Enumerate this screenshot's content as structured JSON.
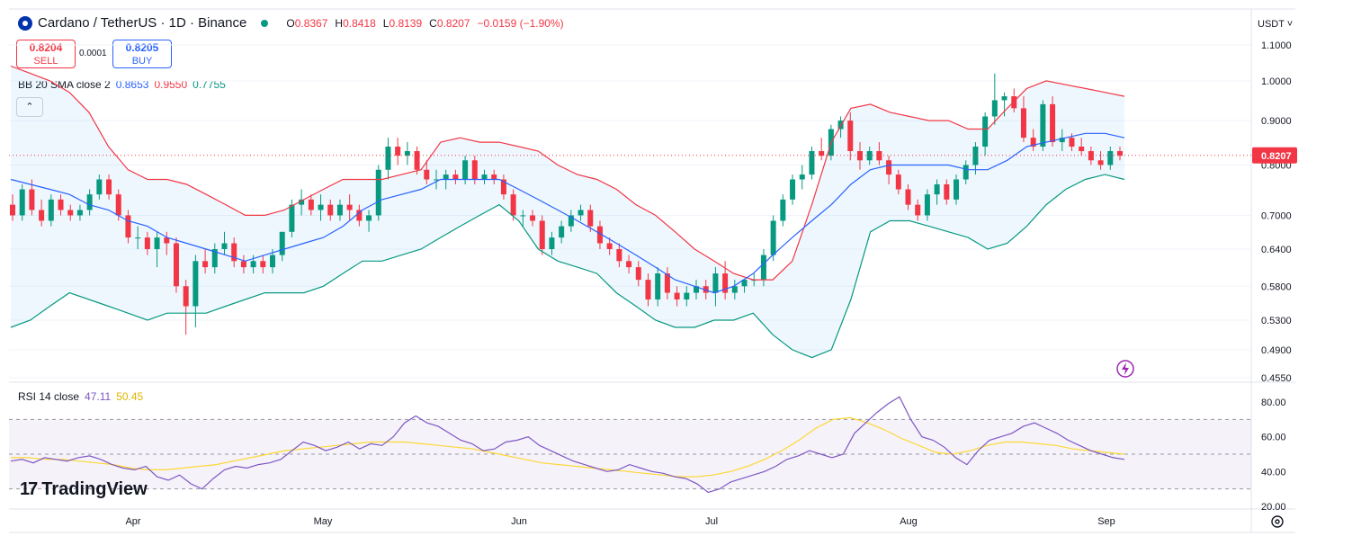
{
  "header": {
    "symbol_title": "Cardano / TetherUS · 1D · Binance",
    "ohlc": {
      "o_label": "O",
      "o": "0.8367",
      "h_label": "H",
      "h": "0.8418",
      "l_label": "L",
      "l": "0.8139",
      "c_label": "C",
      "c": "0.8207",
      "change": "−0.0159 (−1.90%)"
    }
  },
  "trade": {
    "sell_price": "0.8204",
    "sell_label": "SELL",
    "spread": "0.0001",
    "buy_price": "0.8205",
    "buy_label": "BUY"
  },
  "bb_legend": {
    "name": "BB 20 SMA close 2",
    "basis": "0.8653",
    "upper": "0.9550",
    "lower": "0.7755"
  },
  "rsi_legend": {
    "name": "RSI 14 close",
    "rsi": "47.11",
    "ma": "50.45"
  },
  "currency": "USDT ˅",
  "watermark": "TradingView",
  "colors": {
    "up": "#089981",
    "down": "#f23645",
    "basis": "#2962ff",
    "upper": "#f23645",
    "lower": "#089981",
    "bbfill": "#e3f2fd",
    "rsi": "#7e57c2",
    "rsi_ma": "#fdd835",
    "last_price": "#f23645"
  },
  "chart_data": [
    {
      "type": "candlestick",
      "title": "Cardano / TetherUS · 1D · Binance",
      "price_axis_ticks": [
        "1.1000",
        "1.0000",
        "0.9000",
        "0.8000",
        "0.7000",
        "0.6400",
        "0.5800",
        "0.5300",
        "0.4900",
        "0.4550"
      ],
      "x_tick_labels": [
        "Apr",
        "May",
        "Jun",
        "Jul",
        "Aug",
        "Sep"
      ],
      "last_price": "0.8207",
      "scale": "log",
      "ylim": [
        0.455,
        1.1
      ],
      "candles": [
        [
          0.72,
          0.74,
          0.69,
          0.7
        ],
        [
          0.7,
          0.76,
          0.69,
          0.75
        ],
        [
          0.75,
          0.77,
          0.7,
          0.71
        ],
        [
          0.71,
          0.73,
          0.68,
          0.69
        ],
        [
          0.69,
          0.74,
          0.68,
          0.73
        ],
        [
          0.73,
          0.74,
          0.7,
          0.71
        ],
        [
          0.71,
          0.72,
          0.69,
          0.7
        ],
        [
          0.7,
          0.72,
          0.69,
          0.71
        ],
        [
          0.71,
          0.75,
          0.7,
          0.74
        ],
        [
          0.74,
          0.78,
          0.73,
          0.77
        ],
        [
          0.77,
          0.78,
          0.73,
          0.74
        ],
        [
          0.74,
          0.75,
          0.69,
          0.7
        ],
        [
          0.7,
          0.71,
          0.65,
          0.66
        ],
        [
          0.66,
          0.68,
          0.64,
          0.66
        ],
        [
          0.66,
          0.67,
          0.63,
          0.64
        ],
        [
          0.64,
          0.67,
          0.61,
          0.66
        ],
        [
          0.66,
          0.67,
          0.63,
          0.65
        ],
        [
          0.65,
          0.66,
          0.57,
          0.58
        ],
        [
          0.58,
          0.59,
          0.51,
          0.55
        ],
        [
          0.55,
          0.63,
          0.52,
          0.62
        ],
        [
          0.62,
          0.64,
          0.6,
          0.61
        ],
        [
          0.61,
          0.65,
          0.6,
          0.64
        ],
        [
          0.64,
          0.67,
          0.63,
          0.65
        ],
        [
          0.65,
          0.66,
          0.61,
          0.62
        ],
        [
          0.62,
          0.63,
          0.6,
          0.61
        ],
        [
          0.61,
          0.63,
          0.6,
          0.62
        ],
        [
          0.62,
          0.63,
          0.6,
          0.61
        ],
        [
          0.61,
          0.64,
          0.6,
          0.63
        ],
        [
          0.63,
          0.67,
          0.62,
          0.67
        ],
        [
          0.67,
          0.73,
          0.66,
          0.72
        ],
        [
          0.72,
          0.75,
          0.7,
          0.73
        ],
        [
          0.73,
          0.74,
          0.7,
          0.71
        ],
        [
          0.71,
          0.74,
          0.69,
          0.72
        ],
        [
          0.72,
          0.73,
          0.69,
          0.7
        ],
        [
          0.7,
          0.73,
          0.69,
          0.72
        ],
        [
          0.72,
          0.74,
          0.69,
          0.71
        ],
        [
          0.71,
          0.72,
          0.68,
          0.69
        ],
        [
          0.69,
          0.71,
          0.67,
          0.7
        ],
        [
          0.7,
          0.8,
          0.69,
          0.79
        ],
        [
          0.79,
          0.86,
          0.77,
          0.84
        ],
        [
          0.84,
          0.86,
          0.8,
          0.82
        ],
        [
          0.82,
          0.85,
          0.8,
          0.83
        ],
        [
          0.83,
          0.84,
          0.78,
          0.79
        ],
        [
          0.79,
          0.81,
          0.76,
          0.77
        ],
        [
          0.77,
          0.79,
          0.75,
          0.77
        ],
        [
          0.77,
          0.79,
          0.75,
          0.78
        ],
        [
          0.78,
          0.79,
          0.76,
          0.77
        ],
        [
          0.77,
          0.82,
          0.76,
          0.81
        ],
        [
          0.81,
          0.82,
          0.76,
          0.77
        ],
        [
          0.77,
          0.79,
          0.76,
          0.78
        ],
        [
          0.78,
          0.79,
          0.76,
          0.77
        ],
        [
          0.77,
          0.78,
          0.73,
          0.74
        ],
        [
          0.74,
          0.75,
          0.69,
          0.7
        ],
        [
          0.7,
          0.71,
          0.68,
          0.7
        ],
        [
          0.7,
          0.71,
          0.68,
          0.69
        ],
        [
          0.69,
          0.7,
          0.63,
          0.64
        ],
        [
          0.64,
          0.67,
          0.63,
          0.66
        ],
        [
          0.66,
          0.69,
          0.65,
          0.68
        ],
        [
          0.68,
          0.71,
          0.67,
          0.7
        ],
        [
          0.7,
          0.72,
          0.69,
          0.71
        ],
        [
          0.71,
          0.72,
          0.67,
          0.68
        ],
        [
          0.68,
          0.69,
          0.64,
          0.65
        ],
        [
          0.65,
          0.66,
          0.63,
          0.64
        ],
        [
          0.64,
          0.65,
          0.61,
          0.62
        ],
        [
          0.62,
          0.63,
          0.6,
          0.61
        ],
        [
          0.61,
          0.62,
          0.58,
          0.59
        ],
        [
          0.59,
          0.6,
          0.55,
          0.56
        ],
        [
          0.56,
          0.61,
          0.55,
          0.6
        ],
        [
          0.6,
          0.61,
          0.56,
          0.57
        ],
        [
          0.57,
          0.58,
          0.55,
          0.56
        ],
        [
          0.56,
          0.58,
          0.55,
          0.57
        ],
        [
          0.57,
          0.59,
          0.56,
          0.58
        ],
        [
          0.58,
          0.59,
          0.56,
          0.57
        ],
        [
          0.57,
          0.61,
          0.55,
          0.6
        ],
        [
          0.6,
          0.62,
          0.56,
          0.57
        ],
        [
          0.57,
          0.59,
          0.56,
          0.58
        ],
        [
          0.58,
          0.59,
          0.57,
          0.59
        ],
        [
          0.59,
          0.6,
          0.58,
          0.59
        ],
        [
          0.59,
          0.64,
          0.58,
          0.63
        ],
        [
          0.63,
          0.7,
          0.62,
          0.69
        ],
        [
          0.69,
          0.74,
          0.68,
          0.73
        ],
        [
          0.73,
          0.78,
          0.72,
          0.77
        ],
        [
          0.77,
          0.8,
          0.75,
          0.78
        ],
        [
          0.78,
          0.84,
          0.77,
          0.83
        ],
        [
          0.83,
          0.86,
          0.81,
          0.82
        ],
        [
          0.82,
          0.89,
          0.81,
          0.88
        ],
        [
          0.88,
          0.91,
          0.86,
          0.9
        ],
        [
          0.9,
          0.92,
          0.81,
          0.83
        ],
        [
          0.83,
          0.85,
          0.79,
          0.81
        ],
        [
          0.81,
          0.84,
          0.8,
          0.83
        ],
        [
          0.83,
          0.85,
          0.8,
          0.81
        ],
        [
          0.81,
          0.82,
          0.76,
          0.78
        ],
        [
          0.78,
          0.79,
          0.74,
          0.75
        ],
        [
          0.75,
          0.76,
          0.71,
          0.72
        ],
        [
          0.72,
          0.73,
          0.69,
          0.7
        ],
        [
          0.7,
          0.75,
          0.69,
          0.74
        ],
        [
          0.74,
          0.77,
          0.72,
          0.76
        ],
        [
          0.76,
          0.77,
          0.72,
          0.73
        ],
        [
          0.73,
          0.78,
          0.72,
          0.77
        ],
        [
          0.77,
          0.81,
          0.76,
          0.8
        ],
        [
          0.8,
          0.85,
          0.78,
          0.84
        ],
        [
          0.84,
          0.92,
          0.82,
          0.91
        ],
        [
          0.91,
          1.02,
          0.89,
          0.95
        ],
        [
          0.95,
          0.97,
          0.91,
          0.96
        ],
        [
          0.96,
          0.98,
          0.92,
          0.93
        ],
        [
          0.93,
          0.96,
          0.85,
          0.86
        ],
        [
          0.86,
          0.88,
          0.83,
          0.84
        ],
        [
          0.84,
          0.95,
          0.83,
          0.94
        ],
        [
          0.94,
          0.96,
          0.84,
          0.85
        ],
        [
          0.85,
          0.88,
          0.83,
          0.86
        ],
        [
          0.86,
          0.87,
          0.83,
          0.84
        ],
        [
          0.84,
          0.86,
          0.82,
          0.83
        ],
        [
          0.83,
          0.84,
          0.8,
          0.81
        ],
        [
          0.81,
          0.83,
          0.79,
          0.8
        ],
        [
          0.8,
          0.84,
          0.79,
          0.83
        ],
        [
          0.83,
          0.84,
          0.81,
          0.82
        ]
      ],
      "bollinger": {
        "upper": [
          1.04,
          1.02,
          1.0,
          0.97,
          0.92,
          0.84,
          0.79,
          0.77,
          0.77,
          0.76,
          0.74,
          0.72,
          0.7,
          0.7,
          0.71,
          0.73,
          0.75,
          0.77,
          0.77,
          0.77,
          0.78,
          0.79,
          0.85,
          0.86,
          0.85,
          0.85,
          0.84,
          0.83,
          0.8,
          0.78,
          0.77,
          0.75,
          0.72,
          0.7,
          0.67,
          0.64,
          0.62,
          0.6,
          0.59,
          0.59,
          0.62,
          0.72,
          0.85,
          0.93,
          0.94,
          0.92,
          0.91,
          0.9,
          0.9,
          0.88,
          0.88,
          0.93,
          0.98,
          1.0,
          0.99,
          0.98,
          0.97,
          0.96
        ],
        "basis": [
          0.77,
          0.76,
          0.75,
          0.74,
          0.72,
          0.71,
          0.69,
          0.68,
          0.66,
          0.65,
          0.64,
          0.63,
          0.62,
          0.63,
          0.64,
          0.65,
          0.66,
          0.68,
          0.71,
          0.73,
          0.74,
          0.75,
          0.77,
          0.77,
          0.77,
          0.77,
          0.75,
          0.73,
          0.71,
          0.69,
          0.67,
          0.65,
          0.63,
          0.61,
          0.59,
          0.58,
          0.57,
          0.58,
          0.6,
          0.63,
          0.66,
          0.69,
          0.72,
          0.76,
          0.79,
          0.8,
          0.8,
          0.8,
          0.8,
          0.79,
          0.79,
          0.81,
          0.84,
          0.85,
          0.86,
          0.87,
          0.87,
          0.86
        ],
        "lower": [
          0.52,
          0.53,
          0.55,
          0.57,
          0.56,
          0.55,
          0.54,
          0.53,
          0.54,
          0.54,
          0.54,
          0.55,
          0.56,
          0.57,
          0.57,
          0.57,
          0.58,
          0.6,
          0.62,
          0.62,
          0.63,
          0.64,
          0.66,
          0.68,
          0.7,
          0.72,
          0.69,
          0.64,
          0.62,
          0.61,
          0.6,
          0.57,
          0.55,
          0.53,
          0.52,
          0.52,
          0.53,
          0.53,
          0.54,
          0.51,
          0.49,
          0.48,
          0.49,
          0.56,
          0.67,
          0.69,
          0.69,
          0.68,
          0.67,
          0.66,
          0.64,
          0.65,
          0.68,
          0.72,
          0.75,
          0.77,
          0.78,
          0.77
        ]
      }
    },
    {
      "type": "line",
      "title": "RSI 14 close",
      "ylim": [
        20,
        80
      ],
      "y_tick_labels": [
        "80.00",
        "60.00",
        "40.00",
        "20.00"
      ],
      "bands": [
        70,
        50,
        30
      ],
      "series": [
        {
          "name": "RSI",
          "values": [
            46,
            47,
            45,
            48,
            47,
            46,
            48,
            49,
            47,
            44,
            42,
            41,
            43,
            37,
            35,
            38,
            33,
            30,
            36,
            41,
            43,
            42,
            44,
            45,
            47,
            52,
            57,
            55,
            52,
            54,
            57,
            53,
            56,
            55,
            60,
            68,
            72,
            68,
            66,
            62,
            58,
            56,
            52,
            53,
            57,
            58,
            60,
            55,
            52,
            49,
            46,
            44,
            42,
            40,
            41,
            44,
            42,
            40,
            39,
            37,
            36,
            33,
            28,
            30,
            34,
            36,
            38,
            40,
            43,
            47,
            49,
            52,
            50,
            48,
            50,
            62,
            68,
            74,
            79,
            83,
            70,
            60,
            58,
            54,
            48,
            44,
            52,
            58,
            60,
            62,
            66,
            68,
            65,
            62,
            58,
            55,
            52,
            50,
            48,
            47
          ]
        },
        {
          "name": "RSI MA",
          "values": [
            48,
            48,
            47,
            47,
            46,
            45,
            44,
            42,
            41,
            41,
            42,
            43,
            44,
            46,
            48,
            50,
            52,
            53,
            54,
            55,
            56,
            57,
            57,
            57,
            56,
            55,
            54,
            53,
            51,
            49,
            47,
            45,
            44,
            43,
            42,
            41,
            40,
            39,
            38,
            37,
            37,
            38,
            40,
            43,
            47,
            52,
            58,
            65,
            70,
            71,
            68,
            64,
            59,
            55,
            51,
            50,
            52,
            55,
            57,
            57,
            56,
            55,
            53,
            52,
            51,
            50
          ]
        }
      ]
    }
  ]
}
